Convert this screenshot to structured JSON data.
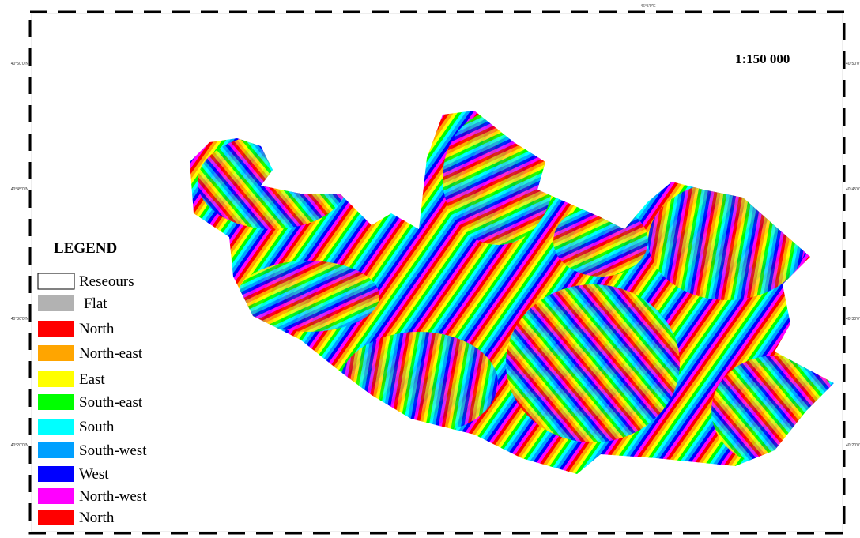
{
  "map": {
    "scale": "1:150 000",
    "coordinates": {
      "top": [
        "46°5'0\"E"
      ],
      "left": [
        "40°50'0\"N",
        "40°45'0\"N",
        "40°30'0\"N",
        "40°20'0\"N"
      ],
      "right": [
        "40°50'0\"N",
        "40°45'0\"N",
        "40°30'0\"N",
        "40°20'0\"N"
      ]
    },
    "legend": {
      "title": "LEGEND",
      "items": [
        {
          "label": "Reseours",
          "color": "#ffffff"
        },
        {
          "label": "Flat",
          "color": "#b2b2b2"
        },
        {
          "label": "North",
          "color": "#ff0000"
        },
        {
          "label": "North-east",
          "color": "#ffa500"
        },
        {
          "label": "East",
          "color": "#ffff00"
        },
        {
          "label": "South-east",
          "color": "#00ff00"
        },
        {
          "label": "South",
          "color": "#00ffff"
        },
        {
          "label": "South-west",
          "color": "#00a0ff"
        },
        {
          "label": "West",
          "color": "#0000ff"
        },
        {
          "label": "North-west",
          "color": "#ff00ff"
        },
        {
          "label": "North",
          "color": "#ff0000"
        }
      ]
    }
  }
}
